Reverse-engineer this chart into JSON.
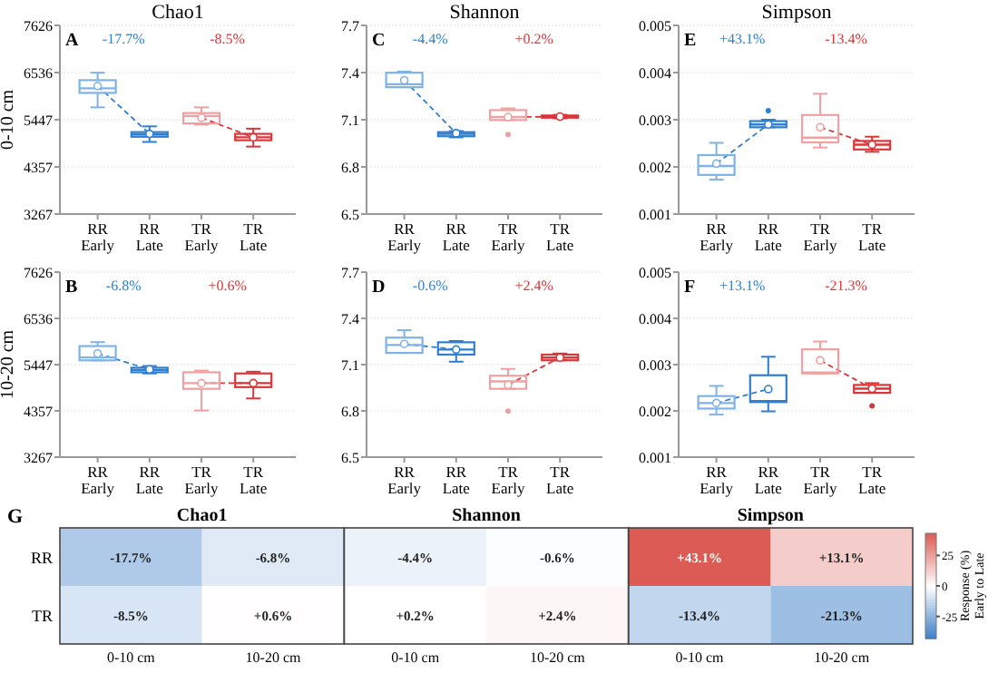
{
  "chart_data": [
    {
      "type": "box",
      "title": "Chao1",
      "ylabel": "0-10 cm",
      "categories": [
        "RR\nEarly",
        "RR\nLate",
        "TR\nEarly",
        "TR\nLate"
      ],
      "colors": [
        "#7fb3e6",
        "#2f7fd0",
        "#f0a0a0",
        "#d9363a"
      ],
      "ylim": [
        3267,
        7626
      ],
      "yticks": [
        3267,
        4357,
        5447,
        6536,
        7626
      ],
      "grid": "y",
      "line_style": "dashed",
      "annotations": [
        "A",
        "-17.7%",
        "-8.5%"
      ],
      "boxes": [
        {
          "low": 5733,
          "q1": 6066,
          "median": 6173,
          "q3": 6360,
          "high": 6533,
          "mean": 6226
        },
        {
          "low": 4933,
          "q1": 5053,
          "median": 5107,
          "q3": 5160,
          "high": 5293,
          "mean": 5120
        },
        {
          "low": 5333,
          "q1": 5360,
          "median": 5533,
          "q3": 5600,
          "high": 5733,
          "mean": 5493
        },
        {
          "low": 4826,
          "q1": 4973,
          "median": 5040,
          "q3": 5120,
          "high": 5240,
          "mean": 5040
        }
      ]
    },
    {
      "type": "box",
      "title": "Shannon",
      "categories": [
        "RR\nEarly",
        "RR\nLate",
        "TR\nEarly",
        "TR\nLate"
      ],
      "colors": [
        "#7fb3e6",
        "#2f7fd0",
        "#f0a0a0",
        "#d9363a"
      ],
      "ylim": [
        6.5,
        7.7
      ],
      "yticks": [
        6.5,
        6.8,
        7.1,
        7.4,
        7.7
      ],
      "grid": "y",
      "line_style": "dashed",
      "annotations": [
        "C",
        "-4.4%",
        "+0.2%"
      ],
      "boxes": [
        {
          "low": 7.307,
          "q1": 7.307,
          "median": 7.326,
          "q3": 7.399,
          "high": 7.406,
          "mean": 7.351
        },
        {
          "low": 6.988,
          "q1": 6.995,
          "median": 7.01,
          "q3": 7.021,
          "high": 7.028,
          "mean": 7.014
        },
        {
          "low": 7.098,
          "q1": 7.098,
          "median": 7.117,
          "q3": 7.161,
          "high": 7.172,
          "mean": 7.117,
          "outliers": [
            7.006
          ]
        },
        {
          "low": 7.109,
          "q1": 7.113,
          "median": 7.12,
          "q3": 7.127,
          "high": 7.131,
          "mean": 7.12
        }
      ]
    },
    {
      "type": "box",
      "title": "Simpson",
      "categories": [
        "RR\nEarly",
        "RR\nLate",
        "TR\nEarly",
        "TR\nLate"
      ],
      "colors": [
        "#7fb3e6",
        "#2f7fd0",
        "#f0a0a0",
        "#d9363a"
      ],
      "ylim": [
        0.001,
        0.005
      ],
      "yticks": [
        0.001,
        0.002,
        0.003,
        0.004,
        0.005
      ],
      "grid": "y",
      "line_style": "dashed",
      "annotations": [
        "E",
        "+43.1%",
        "-13.4%"
      ],
      "boxes": [
        {
          "low": 0.00173,
          "q1": 0.00183,
          "median": 0.00202,
          "q3": 0.00225,
          "high": 0.00251,
          "mean": 0.00207
        },
        {
          "low": 0.00284,
          "q1": 0.00284,
          "median": 0.0029,
          "q3": 0.00297,
          "high": 0.003,
          "mean": 0.0029,
          "outliers": [
            0.00319
          ]
        },
        {
          "low": 0.00241,
          "q1": 0.00252,
          "median": 0.00262,
          "q3": 0.0031,
          "high": 0.00355,
          "mean": 0.00284
        },
        {
          "low": 0.00232,
          "q1": 0.00237,
          "median": 0.00247,
          "q3": 0.00255,
          "high": 0.00264,
          "mean": 0.00247
        }
      ]
    },
    {
      "type": "box",
      "ylabel": "10-20 cm",
      "categories": [
        "RR\nEarly",
        "RR\nLate",
        "TR\nEarly",
        "TR\nLate"
      ],
      "colors": [
        "#7fb3e6",
        "#2f7fd0",
        "#f0a0a0",
        "#d9363a"
      ],
      "ylim": [
        3267,
        7626
      ],
      "yticks": [
        3267,
        4357,
        5447,
        6536,
        7626
      ],
      "grid": "y",
      "line_style": "dashed",
      "annotations": [
        "B",
        "-6.8%",
        "+0.6%"
      ],
      "boxes": [
        {
          "low": 5547,
          "q1": 5547,
          "median": 5614,
          "q3": 5883,
          "high": 5977,
          "mean": 5708
        },
        {
          "low": 5239,
          "q1": 5266,
          "median": 5320,
          "q3": 5373,
          "high": 5413,
          "mean": 5333
        },
        {
          "low": 4366,
          "q1": 4876,
          "median": 5011,
          "q3": 5266,
          "high": 5306,
          "mean": 5011
        },
        {
          "low": 4649,
          "q1": 4917,
          "median": 5011,
          "q3": 5239,
          "high": 5279,
          "mean": 5011
        }
      ]
    },
    {
      "type": "box",
      "categories": [
        "RR\nEarly",
        "RR\nLate",
        "TR\nEarly",
        "TR\nLate"
      ],
      "colors": [
        "#7fb3e6",
        "#2f7fd0",
        "#f0a0a0",
        "#d9363a"
      ],
      "ylim": [
        6.5,
        7.7
      ],
      "yticks": [
        6.5,
        6.8,
        7.1,
        7.4,
        7.7
      ],
      "grid": "y",
      "line_style": "dashed",
      "annotations": [
        "D",
        "-0.6%",
        "+2.4%"
      ],
      "boxes": [
        {
          "low": 7.176,
          "q1": 7.176,
          "median": 7.227,
          "q3": 7.275,
          "high": 7.323,
          "mean": 7.234
        },
        {
          "low": 7.119,
          "q1": 7.165,
          "median": 7.198,
          "q3": 7.245,
          "high": 7.253,
          "mean": 7.198
        },
        {
          "low": 6.943,
          "q1": 6.943,
          "median": 6.991,
          "q3": 7.028,
          "high": 7.072,
          "mean": 6.969,
          "outliers": [
            6.799
          ]
        },
        {
          "low": 7.128,
          "q1": 7.128,
          "median": 7.146,
          "q3": 7.165,
          "high": 7.172,
          "mean": 7.146
        }
      ]
    },
    {
      "type": "box",
      "categories": [
        "RR\nEarly",
        "RR\nLate",
        "TR\nEarly",
        "TR\nLate"
      ],
      "colors": [
        "#7fb3e6",
        "#2f7fd0",
        "#f0a0a0",
        "#d9363a"
      ],
      "ylim": [
        0.001,
        0.005
      ],
      "yticks": [
        0.001,
        0.002,
        0.003,
        0.004,
        0.005
      ],
      "grid": "y",
      "line_style": "dashed",
      "annotations": [
        "F",
        "+13.1%",
        "-21.3%"
      ],
      "boxes": [
        {
          "low": 0.00192,
          "q1": 0.00205,
          "median": 0.00217,
          "q3": 0.00232,
          "high": 0.00254,
          "mean": 0.00217
        },
        {
          "low": 0.00199,
          "q1": 0.00219,
          "median": 0.00221,
          "q3": 0.00277,
          "high": 0.00317,
          "mean": 0.00247
        },
        {
          "low": 0.00281,
          "q1": 0.00281,
          "median": 0.00283,
          "q3": 0.00333,
          "high": 0.0035,
          "mean": 0.00309
        },
        {
          "low": 0.00239,
          "q1": 0.00239,
          "median": 0.00248,
          "q3": 0.00256,
          "high": 0.0026,
          "mean": 0.00248,
          "outliers": [
            0.00211
          ]
        }
      ]
    },
    {
      "type": "heatmap",
      "annotations": [
        "G",
        "Chao1",
        "Shannon",
        "Simpson"
      ],
      "categories": [
        "0-10 cm",
        "10-20 cm",
        "0-10 cm",
        "10-20 cm",
        "0-10 cm",
        "10-20 cm"
      ],
      "y_categories": [
        "RR",
        "TR"
      ],
      "colors": [
        "#3a7dc8",
        "#ffffff",
        "#dc5c55"
      ],
      "cells": [
        [
          -17.7,
          -6.8,
          -4.4,
          -0.6,
          43.1,
          13.1
        ],
        [
          -8.5,
          0.6,
          0.2,
          2.4,
          -13.4,
          -21.3
        ]
      ],
      "cell_labels": [
        [
          "-17.7%",
          "-6.8%",
          "-4.4%",
          "-0.6%",
          "+43.1%",
          "+13.1%"
        ],
        [
          "-8.5%",
          "+0.6%",
          "+0.2%",
          "+2.4%",
          "-13.4%",
          "-21.3%"
        ]
      ],
      "clim": [
        -43.1,
        43.1
      ],
      "cticks": [
        -25,
        0,
        25
      ],
      "clabel": "Response (%)\nEarly to Late"
    }
  ]
}
